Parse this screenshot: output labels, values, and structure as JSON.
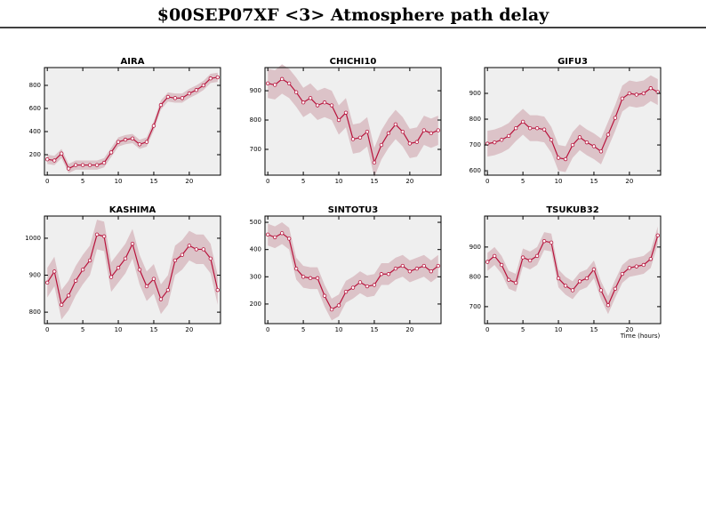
{
  "title": "$00SEP07XF <3>  Atmosphere path delay",
  "xlabel": "Time (hours)",
  "chart_data": [
    {
      "type": "line",
      "title": "AIRA",
      "x": [
        0,
        1,
        2,
        3,
        4,
        5,
        6,
        7,
        8,
        9,
        10,
        11,
        12,
        13,
        14,
        15,
        16,
        17,
        18,
        19,
        20,
        21,
        22,
        23,
        24
      ],
      "xlim": [
        -0.4,
        24.4
      ],
      "xticks": [
        0,
        5,
        10,
        15,
        20
      ],
      "ylim": [
        23,
        954
      ],
      "yticks": [
        200,
        400,
        600,
        800
      ],
      "series": [
        {
          "color": "#b8133c",
          "band_color": "#dcc3c8",
          "error": 40,
          "values": [
            160,
            150,
            210,
            80,
            110,
            110,
            110,
            110,
            130,
            220,
            310,
            330,
            340,
            290,
            310,
            450,
            630,
            700,
            690,
            690,
            730,
            760,
            800,
            860,
            870
          ]
        }
      ]
    },
    {
      "type": "line",
      "title": "CHICHI10",
      "x": [
        0,
        1,
        2,
        3,
        4,
        5,
        6,
        7,
        8,
        9,
        10,
        11,
        12,
        13,
        14,
        15,
        16,
        17,
        18,
        19,
        20,
        21,
        22,
        23,
        24
      ],
      "xlim": [
        -0.4,
        24.4
      ],
      "xticks": [
        0,
        5,
        10,
        15,
        20
      ],
      "ylim": [
        612,
        979
      ],
      "yticks": [
        700,
        800,
        900
      ],
      "series": [
        {
          "color": "#b8133c",
          "band_color": "#dcc3c8",
          "error": 50,
          "values": [
            925,
            920,
            940,
            925,
            895,
            860,
            875,
            850,
            860,
            850,
            800,
            825,
            735,
            740,
            760,
            655,
            715,
            755,
            785,
            760,
            720,
            725,
            765,
            755,
            765
          ]
        }
      ]
    },
    {
      "type": "line",
      "title": "GIFU3",
      "x": [
        0,
        1,
        2,
        3,
        4,
        5,
        6,
        7,
        8,
        9,
        10,
        11,
        12,
        13,
        14,
        15,
        16,
        17,
        18,
        19,
        20,
        21,
        22,
        23,
        24
      ],
      "xlim": [
        -0.4,
        24.4
      ],
      "xticks": [
        0,
        5,
        10,
        15,
        20
      ],
      "ylim": [
        583,
        1000
      ],
      "yticks": [
        600,
        700,
        800,
        900
      ],
      "series": [
        {
          "color": "#b8133c",
          "band_color": "#dcc3c8",
          "error": 50,
          "values": [
            705,
            710,
            720,
            735,
            765,
            790,
            765,
            765,
            760,
            720,
            650,
            645,
            700,
            730,
            710,
            695,
            675,
            740,
            805,
            880,
            900,
            895,
            900,
            920,
            905
          ]
        }
      ]
    },
    {
      "type": "line",
      "title": "KASHIMA",
      "x": [
        0,
        1,
        2,
        3,
        4,
        5,
        6,
        7,
        8,
        9,
        10,
        11,
        12,
        13,
        14,
        15,
        16,
        17,
        18,
        19,
        20,
        21,
        22,
        23,
        24
      ],
      "xlim": [
        -0.4,
        24.4
      ],
      "xticks": [
        0,
        5,
        10,
        15,
        20
      ],
      "ylim": [
        769,
        1060
      ],
      "yticks": [
        800,
        900,
        1000
      ],
      "series": [
        {
          "color": "#b8133c",
          "band_color": "#dcc3c8",
          "error": 40,
          "values": [
            880,
            910,
            820,
            845,
            885,
            915,
            940,
            1010,
            1005,
            895,
            920,
            945,
            985,
            915,
            870,
            890,
            835,
            860,
            940,
            955,
            980,
            970,
            970,
            945,
            860
          ]
        }
      ]
    },
    {
      "type": "line",
      "title": "SINTOTU3",
      "x": [
        0,
        1,
        2,
        3,
        4,
        5,
        6,
        7,
        8,
        9,
        10,
        11,
        12,
        13,
        14,
        15,
        16,
        17,
        18,
        19,
        20,
        21,
        22,
        23,
        24
      ],
      "xlim": [
        -0.4,
        24.4
      ],
      "xticks": [
        0,
        5,
        10,
        15,
        20
      ],
      "ylim": [
        128,
        523
      ],
      "yticks": [
        200,
        300,
        400,
        500
      ],
      "series": [
        {
          "color": "#b8133c",
          "band_color": "#dcc3c8",
          "error": 40,
          "values": [
            455,
            445,
            460,
            440,
            330,
            300,
            295,
            295,
            230,
            180,
            195,
            245,
            260,
            280,
            265,
            270,
            310,
            310,
            330,
            340,
            320,
            330,
            340,
            320,
            340
          ]
        }
      ]
    },
    {
      "type": "line",
      "title": "TSUKUB32",
      "x": [
        0,
        1,
        2,
        3,
        4,
        5,
        6,
        7,
        8,
        9,
        10,
        11,
        12,
        13,
        14,
        15,
        16,
        17,
        18,
        19,
        20,
        21,
        22,
        23,
        24
      ],
      "xlim": [
        -0.4,
        24.4
      ],
      "xticks": [
        0,
        5,
        10,
        15,
        20
      ],
      "ylim": [
        643,
        1004
      ],
      "yticks": [
        700,
        800,
        900
      ],
      "series": [
        {
          "color": "#b8133c",
          "band_color": "#dcc3c8",
          "error": 30,
          "values": [
            850,
            870,
            840,
            790,
            780,
            865,
            855,
            870,
            920,
            915,
            795,
            770,
            755,
            785,
            795,
            825,
            755,
            705,
            760,
            810,
            830,
            835,
            840,
            860,
            939
          ]
        }
      ]
    }
  ]
}
